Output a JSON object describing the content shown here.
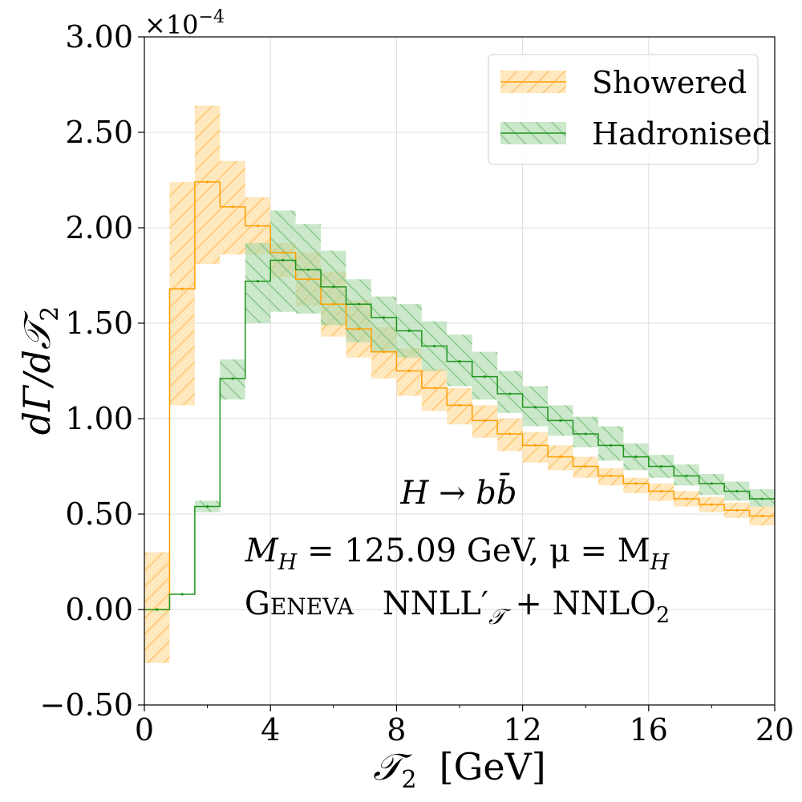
{
  "chart_data": {
    "type": "step",
    "x_edges": [
      0.0,
      0.8,
      1.6,
      2.4,
      3.2,
      4.0,
      4.8,
      5.6,
      6.4,
      7.2,
      8.0,
      8.8,
      9.6,
      10.4,
      11.2,
      12.0,
      12.8,
      13.6,
      14.4,
      15.2,
      16.0,
      16.8,
      17.6,
      18.4,
      19.2,
      20.0
    ],
    "xlim": [
      0,
      20
    ],
    "ylim": [
      -0.5,
      3.0
    ],
    "y_scale_label": "×10",
    "y_scale_exponent": "−4",
    "xlabel_symbol": "𝒯",
    "xlabel_sub": "2",
    "xlabel_unit": "[GeV]",
    "ylabel_prefix": "dΓ/d",
    "ylabel_symbol": "𝒯",
    "ylabel_sub": "2",
    "x_ticks": [
      0,
      4,
      8,
      12,
      16,
      20
    ],
    "x_tick_labels": [
      "0",
      "4",
      "8",
      "12",
      "16",
      "20"
    ],
    "y_ticks": [
      -0.5,
      0.0,
      0.5,
      1.0,
      1.5,
      2.0,
      2.5,
      3.0
    ],
    "y_tick_labels": [
      "−0.50",
      "0.00",
      "0.50",
      "1.00",
      "1.50",
      "2.00",
      "2.50",
      "3.00"
    ],
    "grid": true,
    "legend_position": "top-right",
    "series": [
      {
        "name": "Showered",
        "color": "#ff9f00",
        "band_color": "#ffdca0",
        "values": [
          0.0,
          1.68,
          2.24,
          2.11,
          2.01,
          1.87,
          1.73,
          1.6,
          1.47,
          1.35,
          1.25,
          1.16,
          1.07,
          0.99,
          0.92,
          0.86,
          0.8,
          0.75,
          0.7,
          0.66,
          0.62,
          0.58,
          0.55,
          0.52,
          0.49
        ],
        "lower": [
          -0.28,
          1.07,
          1.81,
          1.86,
          1.86,
          1.74,
          1.59,
          1.43,
          1.32,
          1.21,
          1.12,
          1.04,
          0.97,
          0.9,
          0.83,
          0.77,
          0.73,
          0.69,
          0.65,
          0.61,
          0.57,
          0.54,
          0.51,
          0.48,
          0.44
        ],
        "upper": [
          0.3,
          2.24,
          2.64,
          2.35,
          2.16,
          1.92,
          1.87,
          1.77,
          1.62,
          1.48,
          1.37,
          1.26,
          1.16,
          1.07,
          1.0,
          0.93,
          0.86,
          0.8,
          0.74,
          0.69,
          0.66,
          0.62,
          0.59,
          0.56,
          0.54
        ]
      },
      {
        "name": "Hadronised",
        "color": "#1e961e",
        "band_color": "#9ed49e",
        "values": [
          0.0,
          0.08,
          0.54,
          1.21,
          1.72,
          1.83,
          1.78,
          1.69,
          1.6,
          1.53,
          1.46,
          1.38,
          1.3,
          1.22,
          1.13,
          1.06,
          0.99,
          0.92,
          0.86,
          0.8,
          0.75,
          0.7,
          0.66,
          0.62,
          0.58
        ],
        "lower": [
          0.0,
          0.08,
          0.51,
          1.1,
          1.5,
          1.56,
          1.55,
          1.49,
          1.4,
          1.35,
          1.32,
          1.25,
          1.17,
          1.1,
          1.03,
          0.96,
          0.91,
          0.85,
          0.78,
          0.73,
          0.69,
          0.65,
          0.6,
          0.57,
          0.54
        ],
        "upper": [
          0.0,
          0.08,
          0.57,
          1.31,
          1.92,
          2.09,
          2.02,
          1.88,
          1.73,
          1.64,
          1.6,
          1.51,
          1.44,
          1.35,
          1.25,
          1.17,
          1.07,
          1.01,
          0.96,
          0.87,
          0.81,
          0.76,
          0.71,
          0.67,
          0.63
        ]
      }
    ],
    "annotations": [
      {
        "lines": [
          "H → bb̄"
        ]
      },
      {
        "lines": [
          "M",
          "H",
          " = 125.09 GeV,  μ = M",
          "H"
        ]
      },
      {
        "lines": [
          "Geneva",
          "NNLL′",
          "𝒯",
          " + NNLO",
          "2"
        ]
      }
    ]
  }
}
